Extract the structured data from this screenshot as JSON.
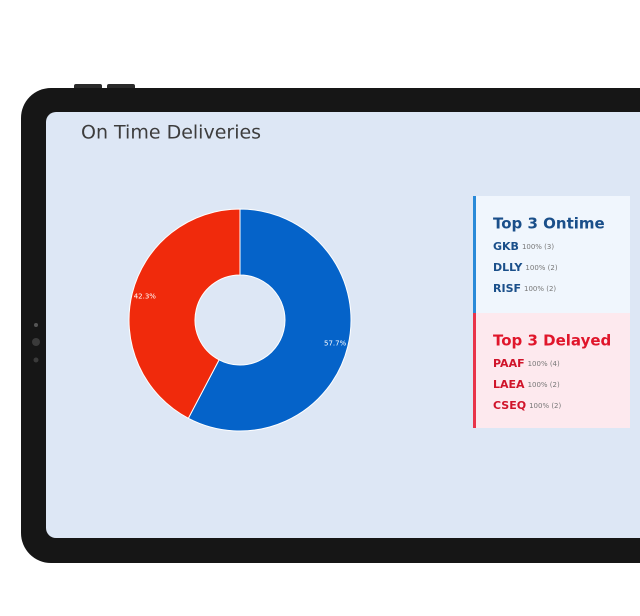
{
  "chart_data": {
    "type": "donut",
    "title": "On Time Deliveries",
    "values": [
      57.7,
      42.3
    ],
    "value_labels": [
      "57.7%",
      "42.3%"
    ],
    "colors": [
      "#0563c9",
      "#f02a0c"
    ]
  },
  "panels": [
    {
      "title": "Top 3 Ontime",
      "items": [
        {
          "code": "GKB",
          "detail": "100% (3)"
        },
        {
          "code": "DLLY",
          "detail": "100% (2)"
        },
        {
          "code": "RISF",
          "detail": "100% (2)"
        }
      ]
    },
    {
      "title": "Top 3 Delayed",
      "items": [
        {
          "code": "PAAF",
          "detail": "100% (4)"
        },
        {
          "code": "LAEA",
          "detail": "100% (2)"
        },
        {
          "code": "CSEQ",
          "detail": "100% (2)"
        }
      ]
    }
  ]
}
